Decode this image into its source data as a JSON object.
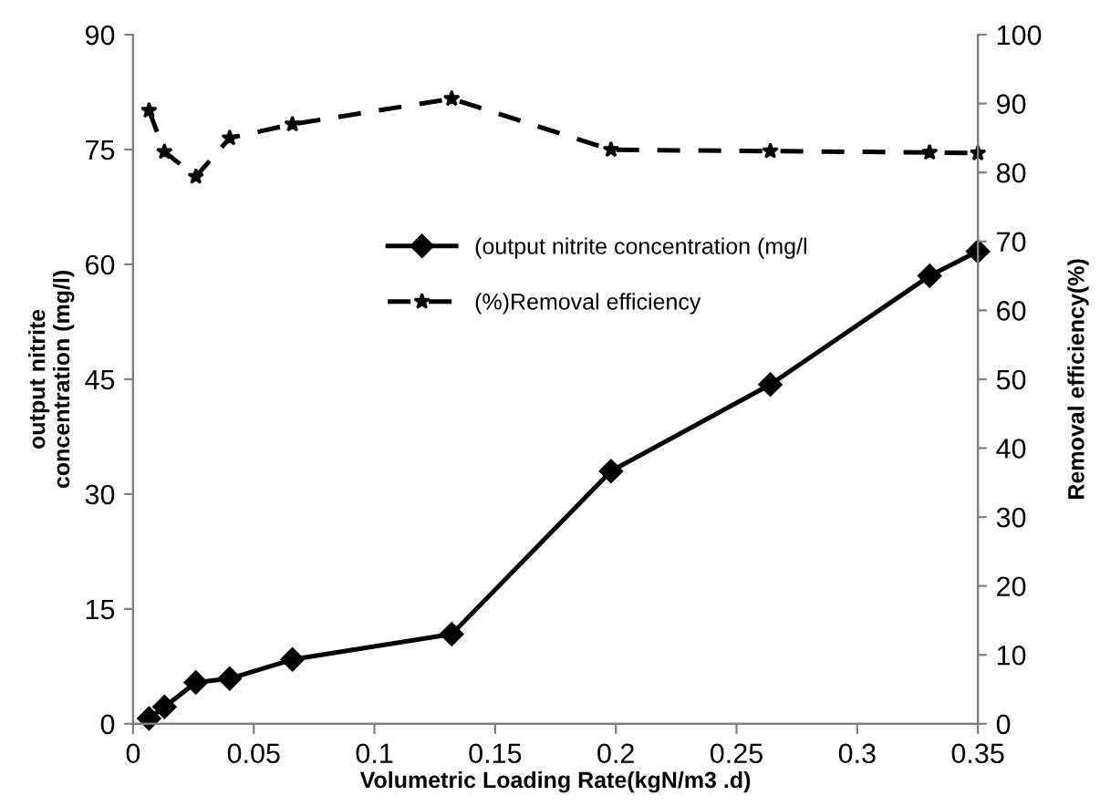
{
  "chart_data": {
    "type": "line",
    "xlabel": "Volumetric Loading Rate(kgN/m3 .d)",
    "ylabel": "output nitrite\nconcentration (mg/l)",
    "y2label": "Removal efficiency(%)",
    "x": [
      0.0066,
      0.013,
      0.026,
      0.04,
      0.066,
      0.132,
      0.198,
      0.264,
      0.33,
      0.35
    ],
    "series": [
      {
        "name": "(output nitrite concentration (mg/l",
        "color": "#000000",
        "marker": "diamond",
        "line_style": "solid",
        "values": [
          0.7,
          2.2,
          5.4,
          5.9,
          8.4,
          11.7,
          33,
          44.3,
          58.5,
          61.7
        ]
      },
      {
        "name": "(%)Removal efficiency",
        "color": "#000000",
        "marker": "star",
        "line_style": "dashed",
        "axis": "y2",
        "values": [
          89,
          83,
          79.4,
          85,
          87,
          90.7,
          83.3,
          83.1,
          82.9,
          82.8
        ]
      }
    ],
    "xlim": [
      0,
      0.35
    ],
    "xticks": [
      0,
      0.05,
      0.1,
      0.15,
      0.2,
      0.25,
      0.3,
      0.35
    ],
    "ylim": [
      0,
      90
    ],
    "yticks": [
      0,
      15,
      30,
      45,
      60,
      75,
      90
    ],
    "y2lim": [
      0,
      100
    ],
    "y2ticks": [
      0,
      10,
      20,
      30,
      40,
      50,
      60,
      70,
      80,
      90,
      100
    ],
    "legend": "center",
    "grid": false
  }
}
